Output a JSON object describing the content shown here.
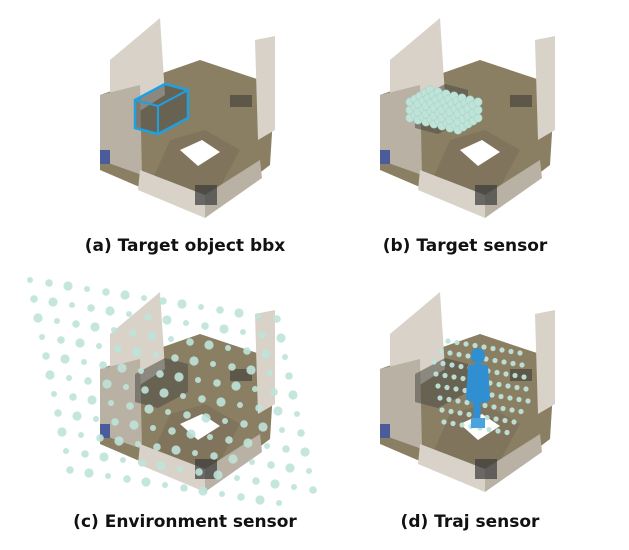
{
  "figure": {
    "captions": {
      "a": "(a) Target object bbx",
      "b": "(b) Target sensor",
      "c": "(c) Environment sensor",
      "d": "(d) Traj sensor"
    },
    "colors": {
      "wall": "#d8d2c8",
      "wall_shade": "#b9b1a4",
      "floor": "#8a7f63",
      "floor_dark": "#6e6450",
      "bbox": "#1fa0e0",
      "sensor_sphere": "#bfe3d9",
      "human": "#2f8fd0",
      "white_patch": "#ffffff"
    }
  }
}
